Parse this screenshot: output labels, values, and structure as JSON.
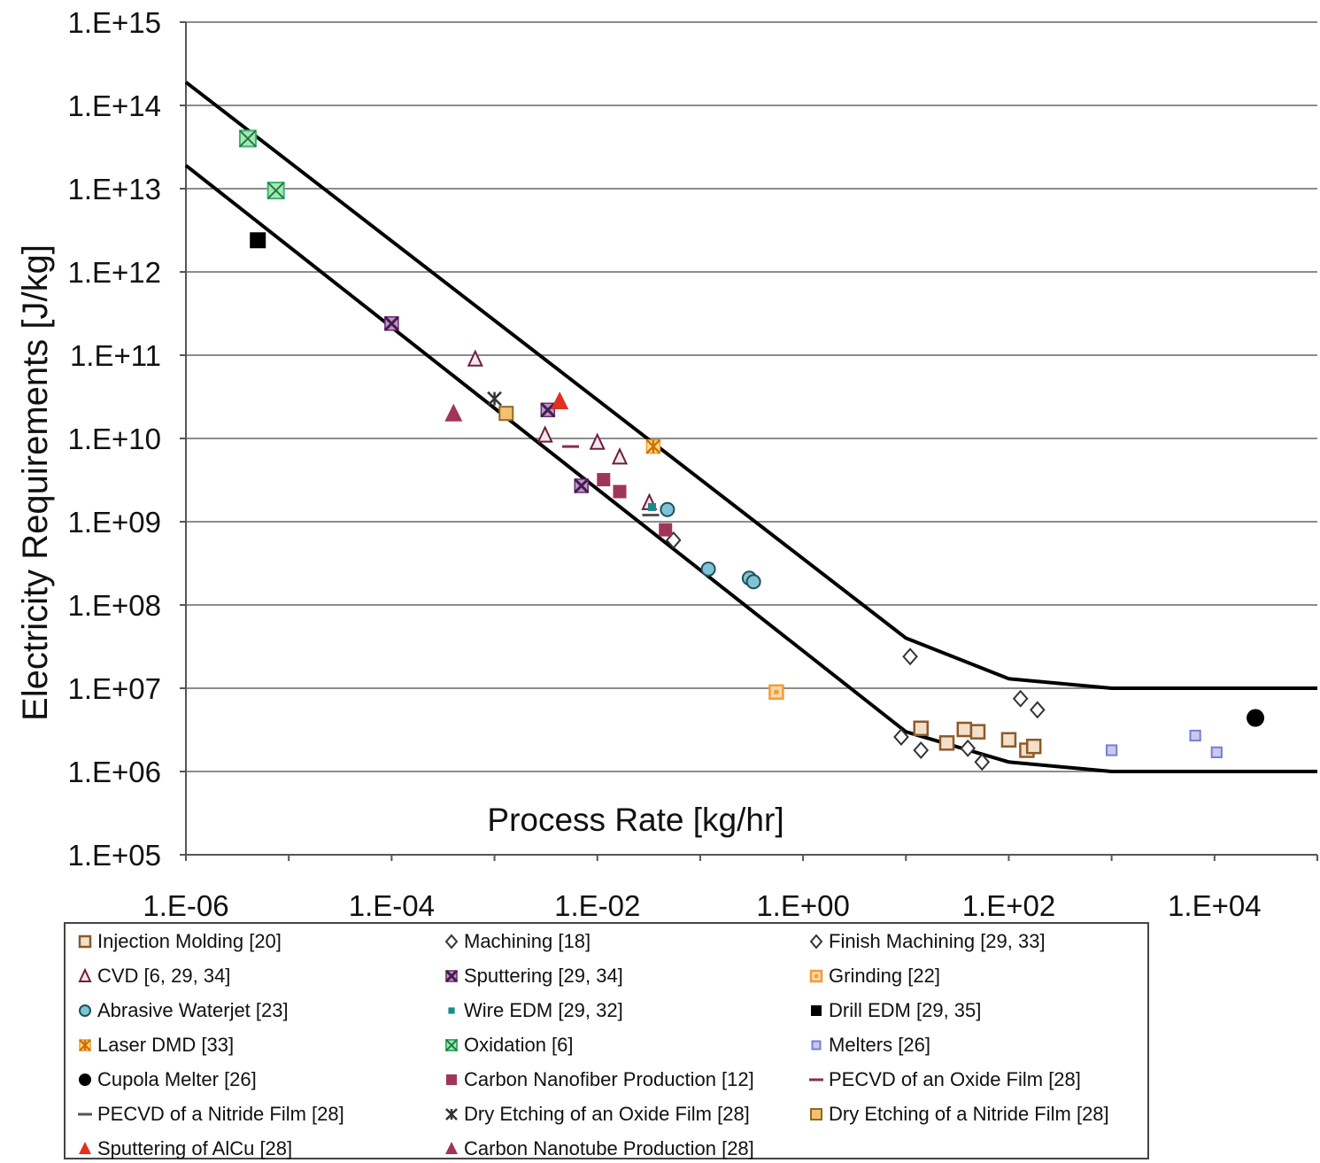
{
  "chart_data": {
    "type": "scatter",
    "xlabel": "Process Rate [kg/hr]",
    "ylabel": "Electricity Requirements [J/kg]",
    "x_scale": "log",
    "y_scale": "log",
    "xlim": [
      1e-06,
      100000.0
    ],
    "ylim": [
      100000.0,
      1000000000000000.0
    ],
    "grid": "horizontal",
    "legend_position": "bottom",
    "x_tick_labels": [
      "1.E-06",
      "1.E-04",
      "1.E-02",
      "1.E+00",
      "1.E+02",
      "1.E+04"
    ],
    "y_tick_labels": [
      "1.E+05",
      "1.E+06",
      "1.E+07",
      "1.E+08",
      "1.E+09",
      "1.E+10",
      "1.E+11",
      "1.E+12",
      "1.E+13",
      "1.E+14",
      "1.E+15"
    ],
    "boundary_lines": [
      {
        "points": [
          [
            1e-06,
            190000000000000.0
          ],
          [
            10,
            40000000.0
          ],
          [
            100,
            13000000.0
          ],
          [
            1000,
            10000000.0
          ],
          [
            100000.0,
            10000000.0
          ]
        ]
      },
      {
        "points": [
          [
            1e-06,
            19000000000000.0
          ],
          [
            10,
            3000000.0
          ],
          [
            100,
            1300000.0
          ],
          [
            1000,
            1000000.0
          ],
          [
            100000.0,
            1000000.0
          ]
        ]
      }
    ],
    "series": [
      {
        "name": "Injection Molding [20]",
        "marker": "square-hollow",
        "color": "#8b5a2b",
        "x": [
          14,
          25,
          37,
          50,
          100,
          150,
          175
        ],
        "y": [
          3300000.0,
          2200000.0,
          3200000.0,
          3000000.0,
          2400000.0,
          1800000.0,
          2000000.0
        ]
      },
      {
        "name": "Machining [18]",
        "marker": "diamond-hollow",
        "color": "#333333",
        "x": [
          14,
          40,
          55
        ],
        "y": [
          1800000.0,
          1900000.0,
          1300000.0
        ]
      },
      {
        "name": "Finish Machining [29, 33]",
        "marker": "diamond-hollow",
        "color": "#333333",
        "x": [
          0.055,
          11,
          9,
          130,
          190
        ],
        "y": [
          600000000.0,
          24000000.0,
          2600000.0,
          7500000.0,
          5500000.0
        ]
      },
      {
        "name": "CVD [6, 29, 34]",
        "marker": "triangle-hollow",
        "color": "#6b1f3a",
        "x": [
          0.00065,
          0.0031,
          0.01,
          0.0165,
          0.032
        ],
        "y": [
          90000000000.0,
          11000000000.0,
          9000000000.0,
          6000000000.0,
          1700000000.0
        ]
      },
      {
        "name": "Sputtering [29, 34]",
        "marker": "square-x",
        "color": "#6b2a6b",
        "x": [
          0.0001,
          0.0033,
          0.007
        ],
        "y": [
          240000000000.0,
          22000000000.0,
          2700000000.0
        ]
      },
      {
        "name": "Grinding [22]",
        "marker": "square-orange",
        "color": "#f39c3a",
        "x": [
          0.55
        ],
        "y": [
          9000000.0
        ]
      },
      {
        "name": "Abrasive Waterjet [23]",
        "marker": "circle-teal",
        "color": "#2a7f8f",
        "x": [
          0.048,
          0.12,
          0.3,
          0.33
        ],
        "y": [
          1400000000.0,
          270000000.0,
          210000000.0,
          190000000.0
        ]
      },
      {
        "name": "Wire EDM [29, 32]",
        "marker": "square-small-teal",
        "color": "#1a8a8a",
        "x": [
          0.034
        ],
        "y": [
          1500000000.0
        ]
      },
      {
        "name": "Drill EDM [29, 35]",
        "marker": "square-black",
        "color": "#000000",
        "x": [
          5e-06
        ],
        "y": [
          2400000000000.0
        ]
      },
      {
        "name": "Laser DMD [33]",
        "marker": "square-star-orange",
        "color": "#f0a020",
        "x": [
          0.035
        ],
        "y": [
          8000000000.0
        ]
      },
      {
        "name": "Oxidation [6]",
        "marker": "square-x-green",
        "color": "#3cb371",
        "x": [
          4e-06,
          7.5e-06
        ],
        "y": [
          40000000000000.0,
          9500000000000.0
        ]
      },
      {
        "name": "Melters [26]",
        "marker": "square-small-blue",
        "color": "#7b7bd6",
        "x": [
          1000,
          6500,
          10500
        ],
        "y": [
          1800000.0,
          2700000.0,
          1700000.0
        ]
      },
      {
        "name": "Cupola Melter [26]",
        "marker": "circle-black",
        "color": "#000000",
        "x": [
          25000
        ],
        "y": [
          4400000.0
        ]
      },
      {
        "name": "Carbon Nanofiber Production [12]",
        "marker": "square-filled",
        "color": "#a0355a",
        "x": [
          0.0115,
          0.0165,
          0.046
        ],
        "y": [
          3200000000.0,
          2300000000.0,
          800000000.0
        ]
      },
      {
        "name": "PECVD of an Oxide Film [28]",
        "marker": "dash",
        "color": "#8b2a5a",
        "x": [
          0.0055
        ],
        "y": [
          8000000000.0
        ]
      },
      {
        "name": "PECVD of a Nitride Film [28]",
        "marker": "dash",
        "color": "#555555",
        "x": [
          0.033
        ],
        "y": [
          1200000000.0
        ]
      },
      {
        "name": "Dry Etching of an Oxide Film [28]",
        "marker": "x-star",
        "color": "#333333",
        "x": [
          0.001
        ],
        "y": [
          30000000000.0
        ]
      },
      {
        "name": "Dry Etching of a Nitride Film [28]",
        "marker": "square-orange-dark",
        "color": "#f0a030",
        "x": [
          0.0013
        ],
        "y": [
          20000000000.0
        ]
      },
      {
        "name": "Sputtering of AlCu [28]",
        "marker": "triangle-red",
        "color": "#e03020",
        "x": [
          0.0043
        ],
        "y": [
          28000000000.0
        ]
      },
      {
        "name": "Carbon Nanotube Production [28]",
        "marker": "triangle-filled",
        "color": "#a0355a",
        "x": [
          0.0004
        ],
        "y": [
          20000000000.0
        ]
      }
    ]
  }
}
